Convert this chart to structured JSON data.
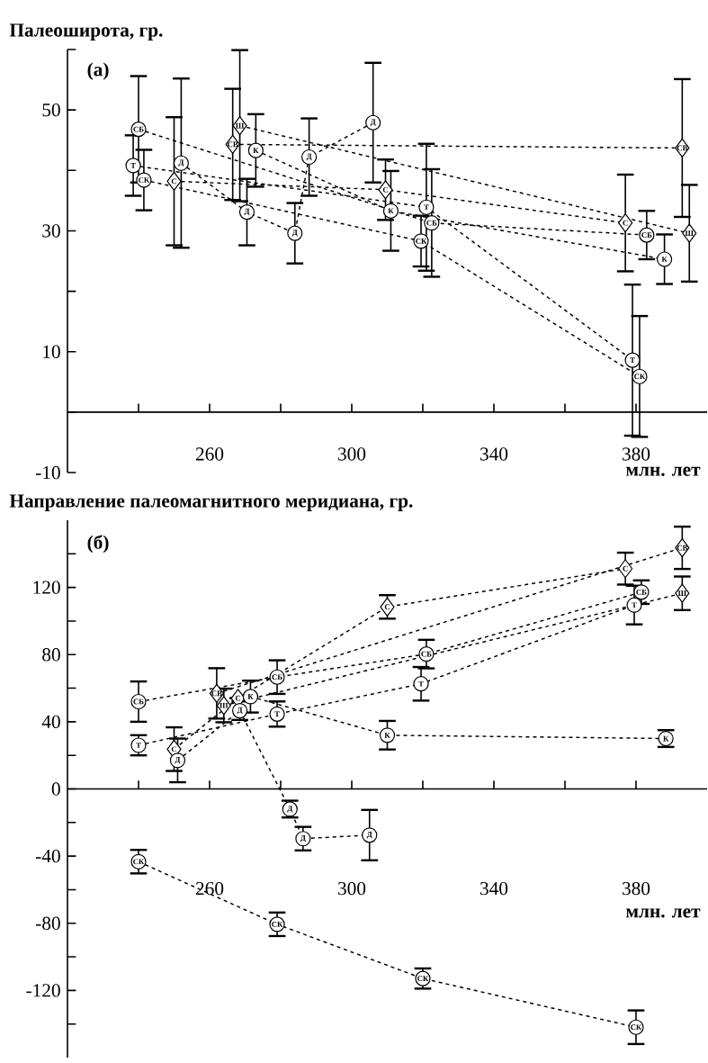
{
  "chart_data": [
    {
      "type": "line",
      "ylabel": "Палеоширота, гр.",
      "xlabel": "млн. лет",
      "annotations": [
        "(а)"
      ],
      "xlim": [
        220,
        400
      ],
      "ylim": [
        -10,
        60
      ],
      "xticks": [
        {
          "value": 240,
          "label": null
        },
        260,
        {
          "value": 280,
          "label": null
        },
        300,
        {
          "value": 320,
          "label": null
        },
        340,
        {
          "value": 360,
          "label": null
        },
        380
      ],
      "yticks": [
        -10,
        {
          "value": 0,
          "label": null
        },
        10,
        {
          "value": 20,
          "label": null
        },
        30,
        {
          "value": 40,
          "label": null
        },
        50,
        {
          "value": 60,
          "label": null
        }
      ],
      "line_style": "dashed",
      "series": [
        {
          "name": "СБ",
          "color": "#000000",
          "marker": "circle",
          "x": [
            240,
            322.5,
            383
          ],
          "values": [
            46.8,
            31.3,
            29.3
          ],
          "errors": [
            8.8,
            8.9,
            4
          ]
        },
        {
          "name": "Т",
          "color": "#000000",
          "marker": "circle",
          "x": [
            238.5,
            321,
            379
          ],
          "values": [
            40.8,
            33.9,
            8.6
          ],
          "errors": [
            5,
            10.5,
            12.5
          ]
        },
        {
          "name": "СК",
          "color": "#000000",
          "marker": "circle",
          "x": [
            241.5,
            319.5,
            381
          ],
          "values": [
            38.4,
            28.3,
            5.9
          ],
          "errors": [
            5,
            4.2,
            10
          ]
        },
        {
          "name": "С",
          "color": "#000000",
          "marker": "diamond",
          "x": [
            250,
            309.5,
            377
          ],
          "values": [
            38.2,
            36.8,
            31.3
          ],
          "errors": [
            10.6,
            5,
            8
          ]
        },
        {
          "name": "Д",
          "color": "#000000",
          "marker": "circle",
          "x": [
            252,
            270.5,
            284,
            288,
            306
          ],
          "values": [
            41.2,
            33.1,
            29.6,
            42.2,
            47.9
          ],
          "errors": [
            14,
            5.5,
            5,
            6.4,
            9.9
          ]
        },
        {
          "name": "СВ",
          "color": "#000000",
          "marker": "diamond",
          "x": [
            266.5,
            393
          ],
          "values": [
            44.3,
            43.7
          ],
          "errors": [
            9.2,
            11.4
          ]
        },
        {
          "name": "Ш",
          "color": "#000000",
          "marker": "diamond",
          "x": [
            268.5,
            395
          ],
          "values": [
            47.4,
            29.6
          ],
          "errors": [
            12.5,
            8
          ]
        },
        {
          "name": "К",
          "color": "#000000",
          "marker": "circle",
          "x": [
            273,
            311,
            388
          ],
          "values": [
            43.3,
            33.3,
            25.3
          ],
          "errors": [
            6,
            6.6,
            4.1
          ]
        }
      ]
    },
    {
      "type": "line",
      "ylabel": "Направление палеомагнитного меридиана, гр.",
      "xlabel": "млн. лет",
      "annotations": [
        "(б)"
      ],
      "xlim": [
        220,
        400
      ],
      "ylim": [
        -160,
        160
      ],
      "xticks": [
        {
          "value": 240,
          "label": null
        },
        260,
        {
          "value": 280,
          "label": null
        },
        300,
        {
          "value": 320,
          "label": null
        },
        340,
        {
          "value": 360,
          "label": null
        },
        380
      ],
      "yticks": [
        {
          "value": -140,
          "label": null
        },
        -120,
        {
          "value": -100,
          "label": null
        },
        -80,
        {
          "value": -60,
          "label": null
        },
        -40,
        {
          "value": -20,
          "label": null
        },
        0,
        {
          "value": 20,
          "label": null
        },
        40,
        {
          "value": 60,
          "label": null
        },
        80,
        {
          "value": 100,
          "label": null
        },
        120,
        {
          "value": 140,
          "label": null
        }
      ],
      "line_style": "dashed",
      "series": [
        {
          "name": "СБ",
          "color": "#000000",
          "marker": "circle",
          "x": [
            240,
            279,
            321,
            381.5
          ],
          "values": [
            52,
            66.6,
            80.3,
            117.2
          ],
          "errors": [
            12,
            10,
            8.5,
            7
          ]
        },
        {
          "name": "Т",
          "color": "#000000",
          "marker": "circle",
          "x": [
            240,
            279,
            319.5,
            379.5
          ],
          "values": [
            26,
            44.6,
            62.6,
            109.5
          ],
          "errors": [
            6,
            7.5,
            10,
            11.5
          ]
        },
        {
          "name": "С",
          "color": "#000000",
          "marker": "diamond",
          "x": [
            250,
            268,
            310,
            377
          ],
          "values": [
            23.7,
            54,
            108.4,
            131.2
          ],
          "errors": [
            13,
            null,
            7,
            9.5
          ]
        },
        {
          "name": "Д",
          "color": "#000000",
          "marker": "circle",
          "x": [
            251,
            268.5,
            282.6,
            286.3,
            305
          ],
          "values": [
            17,
            46.6,
            -12,
            -29.6,
            -27.5
          ],
          "errors": [
            13,
            5.5,
            5,
            7,
            15
          ]
        },
        {
          "name": "СВ",
          "color": "#000000",
          "marker": "diamond",
          "x": [
            262,
            393
          ],
          "values": [
            56.9,
            143.6
          ],
          "errors": [
            15,
            12.6
          ]
        },
        {
          "name": "Ш",
          "color": "#000000",
          "marker": "diamond",
          "x": [
            264,
            393
          ],
          "values": [
            49.7,
            116.5
          ],
          "errors": [
            10,
            10
          ]
        },
        {
          "name": "К",
          "color": "#000000",
          "marker": "circle",
          "x": [
            271.5,
            310,
            388.4
          ],
          "values": [
            55,
            32,
            30
          ],
          "errors": [
            9.5,
            8.5,
            5
          ]
        },
        {
          "name": "СК",
          "color": "#000000",
          "marker": "circle",
          "x": [
            240,
            279,
            320,
            380
          ],
          "values": [
            -43.3,
            -80.6,
            -112.9,
            -141.9
          ],
          "errors": [
            7,
            7,
            6,
            10
          ]
        }
      ]
    }
  ]
}
